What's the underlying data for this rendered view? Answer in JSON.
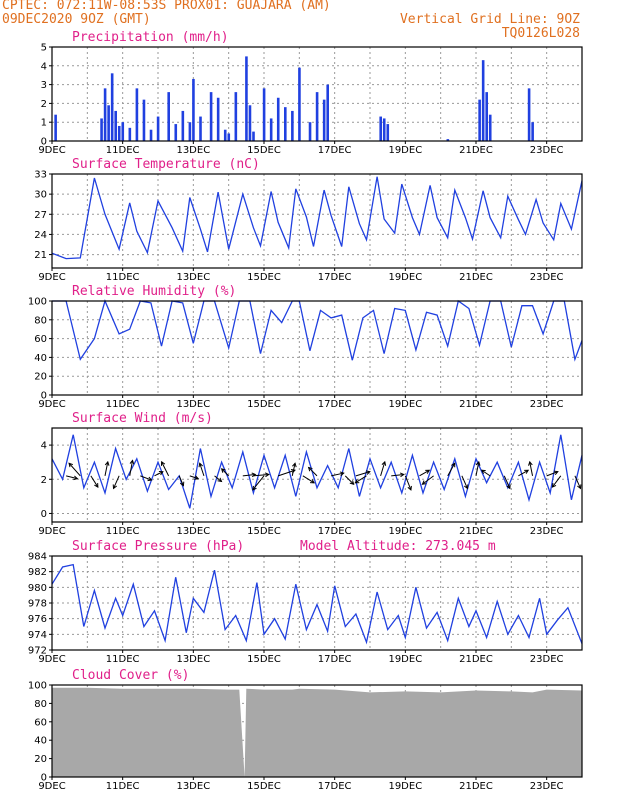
{
  "header": {
    "line1_left": "CPTEC:  072:11W-08:53S  PROX01: GUAJARA (AM)",
    "line2_left": "09DEC2020 9OZ (GMT)",
    "line2_right": "Vertical Grid Line: 9OZ",
    "line3_right": "TQ0126L028"
  },
  "colors": {
    "series": "#2040e0",
    "bar": "#2040e0",
    "cloud": "#a8a8a8",
    "title": "#e0208a",
    "header": "#e07020",
    "grid": "#999999"
  },
  "x_axis": {
    "ticks": [
      "9DEC",
      "11DEC",
      "13DEC",
      "15DEC",
      "17DEC",
      "19DEC",
      "21DEC",
      "23DEC"
    ],
    "start_day": 9,
    "end_day": 24
  },
  "chart_data": [
    {
      "id": "precip",
      "type": "bar",
      "title": "Precipitation (mm/h)",
      "ylim": [
        0,
        5
      ],
      "yticks": [
        0,
        1,
        2,
        3,
        4,
        5
      ],
      "x_days": [
        9.1,
        10.4,
        10.5,
        10.6,
        10.7,
        10.8,
        10.9,
        11.0,
        11.2,
        11.4,
        11.6,
        11.8,
        12.0,
        12.3,
        12.5,
        12.7,
        12.9,
        13.0,
        13.2,
        13.5,
        13.7,
        13.9,
        14.0,
        14.2,
        14.5,
        14.6,
        14.7,
        15.0,
        15.2,
        15.4,
        15.6,
        15.8,
        16.0,
        16.3,
        16.5,
        16.7,
        16.8,
        18.3,
        18.4,
        18.5,
        20.2,
        21.1,
        21.2,
        21.3,
        21.4,
        22.5,
        22.6
      ],
      "values": [
        1.4,
        1.2,
        2.8,
        1.9,
        3.6,
        1.6,
        0.8,
        1.0,
        0.7,
        2.8,
        2.2,
        0.6,
        1.3,
        2.6,
        0.9,
        1.6,
        1.0,
        3.3,
        1.3,
        2.6,
        2.3,
        0.6,
        0.4,
        2.6,
        4.5,
        1.9,
        0.5,
        2.8,
        1.2,
        2.3,
        1.8,
        1.6,
        3.9,
        1.0,
        2.6,
        2.2,
        3.0,
        1.3,
        1.2,
        0.9,
        0.1,
        2.2,
        4.3,
        2.6,
        1.4,
        2.8,
        1.0
      ]
    },
    {
      "id": "temp",
      "type": "line",
      "title": "Surface Temperature (nC)",
      "ylim": [
        19,
        33
      ],
      "yticks": [
        21,
        24,
        27,
        30,
        33
      ],
      "x_days": [
        9.0,
        9.4,
        9.8,
        10.2,
        10.5,
        10.9,
        11.2,
        11.4,
        11.7,
        12.0,
        12.4,
        12.7,
        12.9,
        13.2,
        13.4,
        13.7,
        14.0,
        14.4,
        14.7,
        14.9,
        15.2,
        15.4,
        15.7,
        15.9,
        16.2,
        16.4,
        16.7,
        16.9,
        17.2,
        17.4,
        17.7,
        17.9,
        18.2,
        18.4,
        18.7,
        18.9,
        19.2,
        19.4,
        19.7,
        19.9,
        20.2,
        20.4,
        20.7,
        20.9,
        21.2,
        21.4,
        21.7,
        21.9,
        22.2,
        22.4,
        22.7,
        22.9,
        23.2,
        23.4,
        23.7,
        24.0
      ],
      "values": [
        21.2,
        20.4,
        20.5,
        32.4,
        27.0,
        21.8,
        28.7,
        24.5,
        21.3,
        29.0,
        25.0,
        21.5,
        29.5,
        24.8,
        21.4,
        30.3,
        21.8,
        30.0,
        25.0,
        22.3,
        30.4,
        25.8,
        22.0,
        30.8,
        26.6,
        22.2,
        30.6,
        26.8,
        22.2,
        31.1,
        25.6,
        23.2,
        32.6,
        26.3,
        24.2,
        31.5,
        26.5,
        24.0,
        31.3,
        26.5,
        23.5,
        30.6,
        26.5,
        23.3,
        30.5,
        26.5,
        23.5,
        29.7,
        26.2,
        24.0,
        29.2,
        25.7,
        23.2,
        28.6,
        24.8,
        32.0
      ]
    },
    {
      "id": "rh",
      "type": "line",
      "title": "Relative Humidity (%)",
      "ylim": [
        0,
        100
      ],
      "yticks": [
        0,
        20,
        40,
        60,
        80,
        100
      ],
      "x_days": [
        9.0,
        9.4,
        9.8,
        10.2,
        10.5,
        10.9,
        11.2,
        11.5,
        11.8,
        12.1,
        12.4,
        12.7,
        13.0,
        13.3,
        13.6,
        14.0,
        14.3,
        14.6,
        14.9,
        15.2,
        15.5,
        15.8,
        16.0,
        16.3,
        16.6,
        16.9,
        17.2,
        17.5,
        17.8,
        18.1,
        18.4,
        18.7,
        19.0,
        19.3,
        19.6,
        19.9,
        20.2,
        20.5,
        20.8,
        21.1,
        21.4,
        21.7,
        22.0,
        22.3,
        22.6,
        22.9,
        23.2,
        23.5,
        23.8,
        24.0
      ],
      "values": [
        100,
        100,
        38,
        60,
        100,
        65,
        70,
        100,
        98,
        52,
        100,
        98,
        55,
        100,
        100,
        50,
        100,
        100,
        44,
        90,
        77,
        100,
        100,
        47,
        90,
        82,
        85,
        37,
        82,
        90,
        44,
        92,
        90,
        48,
        88,
        85,
        52,
        100,
        92,
        53,
        100,
        100,
        51,
        95,
        95,
        65,
        100,
        100,
        38,
        58
      ]
    },
    {
      "id": "wind",
      "type": "line",
      "title": "Surface Wind (m/s)",
      "ylim": [
        -0.5,
        5
      ],
      "yticks": [
        0,
        2,
        4
      ],
      "x_days": [
        9.0,
        9.3,
        9.6,
        9.9,
        10.2,
        10.5,
        10.8,
        11.1,
        11.4,
        11.7,
        12.0,
        12.3,
        12.6,
        12.9,
        13.2,
        13.5,
        13.8,
        14.1,
        14.4,
        14.7,
        15.0,
        15.3,
        15.6,
        15.9,
        16.2,
        16.5,
        16.8,
        17.1,
        17.4,
        17.7,
        18.0,
        18.3,
        18.6,
        18.9,
        19.2,
        19.5,
        19.8,
        20.1,
        20.4,
        20.7,
        21.0,
        21.3,
        21.6,
        21.9,
        22.2,
        22.5,
        22.8,
        23.1,
        23.4,
        23.7,
        24.0
      ],
      "values": [
        3.2,
        2.0,
        4.6,
        1.5,
        3.0,
        1.2,
        3.8,
        2.0,
        3.2,
        1.3,
        3.0,
        1.4,
        2.2,
        0.3,
        3.8,
        1.0,
        3.0,
        1.5,
        3.6,
        1.2,
        3.4,
        1.5,
        3.4,
        1.0,
        3.6,
        1.5,
        2.8,
        1.5,
        3.8,
        1.0,
        3.2,
        1.5,
        3.0,
        1.2,
        3.4,
        1.2,
        3.0,
        1.4,
        3.2,
        1.0,
        3.2,
        1.8,
        3.0,
        1.5,
        3.0,
        0.8,
        3.0,
        1.2,
        4.6,
        0.8,
        3.4
      ],
      "arrow_days": [
        9.4,
        9.8,
        10.1,
        10.5,
        10.9,
        11.2,
        11.5,
        11.9,
        12.3,
        12.6,
        12.9,
        13.3,
        13.6,
        14.0,
        14.4,
        14.7,
        15.0,
        15.4,
        15.8,
        16.1,
        16.5,
        16.9,
        17.3,
        17.6,
        17.9,
        18.3,
        18.6,
        19.0,
        19.4,
        19.8,
        20.2,
        20.6,
        21.0,
        21.4,
        21.8,
        22.2,
        22.6,
        23.0,
        23.4,
        23.8
      ],
      "arrow_u": [
        0.8,
        -0.8,
        0.5,
        0.2,
        -0.4,
        0.2,
        0.8,
        0.6,
        -0.5,
        0.3,
        0.6,
        -0.3,
        0.5,
        -0.5,
        0.9,
        1.1,
        -0.8,
        1.2,
        0.2,
        0.8,
        -0.6,
        0.9,
        0.6,
        1.0,
        -0.8,
        0.3,
        0.9,
        0.4,
        0.7,
        -0.8,
        0.5,
        0.4,
        0.2,
        -0.6,
        0.4,
        0.7,
        -0.2,
        0.8,
        -0.6,
        0.4
      ],
      "arrow_v": [
        -0.2,
        0.9,
        -0.8,
        1.0,
        -0.9,
        1.1,
        -0.3,
        0.3,
        1.0,
        -0.7,
        -0.2,
        0.9,
        -0.4,
        0.5,
        0.1,
        0.1,
        -1.0,
        0.4,
        0.9,
        -0.5,
        0.6,
        0.2,
        -0.6,
        0.3,
        -0.5,
        1.0,
        0.1,
        -1.0,
        0.4,
        -0.6,
        0.9,
        -0.9,
        1.0,
        0.4,
        -0.9,
        0.4,
        1.0,
        0.3,
        -0.8,
        -0.9
      ]
    },
    {
      "id": "press",
      "type": "line",
      "title": "Surface Pressure (hPa)",
      "annotation": "Model Altitude: 273.045 m",
      "ylim": [
        972,
        984
      ],
      "yticks": [
        972,
        974,
        976,
        978,
        980,
        982,
        984
      ],
      "x_days": [
        9.0,
        9.3,
        9.6,
        9.9,
        10.2,
        10.5,
        10.8,
        11.0,
        11.3,
        11.6,
        11.9,
        12.2,
        12.5,
        12.8,
        13.0,
        13.3,
        13.6,
        13.9,
        14.2,
        14.5,
        14.8,
        15.0,
        15.3,
        15.6,
        15.9,
        16.2,
        16.5,
        16.8,
        17.0,
        17.3,
        17.6,
        17.9,
        18.2,
        18.5,
        18.8,
        19.0,
        19.3,
        19.6,
        19.9,
        20.2,
        20.5,
        20.8,
        21.0,
        21.3,
        21.6,
        21.9,
        22.2,
        22.5,
        22.8,
        23.0,
        23.3,
        23.6,
        24.0
      ],
      "values": [
        980.4,
        982.6,
        982.9,
        975.0,
        979.6,
        974.8,
        978.6,
        976.4,
        980.4,
        975.0,
        977.0,
        973.2,
        981.3,
        974.2,
        978.6,
        976.8,
        982.2,
        974.6,
        976.4,
        973.2,
        980.6,
        974.0,
        976.0,
        973.4,
        980.4,
        974.6,
        977.8,
        974.4,
        980.2,
        975.0,
        976.6,
        973.0,
        979.4,
        974.6,
        976.4,
        973.6,
        980.0,
        974.8,
        976.8,
        973.2,
        978.6,
        975.0,
        977.0,
        973.6,
        978.2,
        974.0,
        976.4,
        973.6,
        978.6,
        974.0,
        975.8,
        977.4,
        972.8
      ]
    },
    {
      "id": "cloud",
      "type": "area",
      "title": "Cloud Cover (%)",
      "ylim": [
        0,
        100
      ],
      "yticks": [
        0,
        20,
        40,
        60,
        80,
        100
      ],
      "x_days": [
        9.0,
        9.5,
        10.0,
        11.0,
        12.0,
        13.0,
        14.0,
        14.3,
        14.45,
        14.5,
        15.0,
        15.8,
        16.0,
        17.0,
        18.0,
        19.0,
        20.0,
        21.0,
        22.0,
        22.6,
        23.0,
        24.0
      ],
      "values": [
        97,
        97,
        97,
        96,
        96,
        96,
        95,
        95,
        0,
        96,
        95,
        95,
        96,
        95,
        92,
        93,
        92,
        94,
        93,
        92,
        95,
        94
      ]
    }
  ]
}
